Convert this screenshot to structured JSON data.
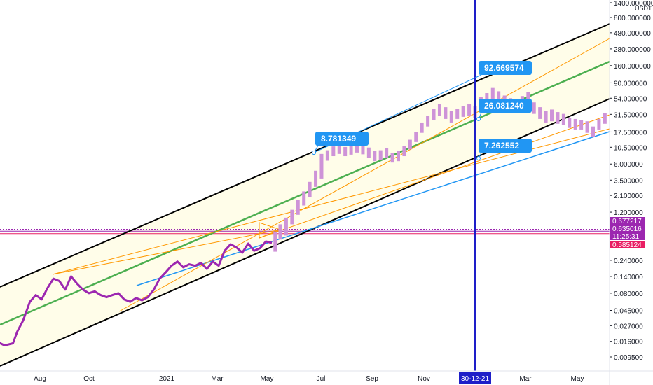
{
  "chart_data": {
    "type": "line",
    "title": "",
    "ylabel": "",
    "xlabel": "",
    "scale": "log",
    "y_unit": "USDT",
    "ylim": [
      0.0075,
      1400
    ],
    "y_tick_labels": [
      "1400.000000",
      "800.000000",
      "480.000000",
      "280.000000",
      "160.000000",
      "90.000000",
      "54.000000",
      "31.500000",
      "17.500000",
      "10.500000",
      "6.000000",
      "3.500000",
      "2.100000",
      "1.200000",
      "0.240000",
      "0.140000",
      "0.080000",
      "0.045000",
      "0.027000",
      "0.016000",
      "0.009500"
    ],
    "x_tick_labels": [
      "Aug",
      "Oct",
      "2021",
      "Mar",
      "May",
      "Jul",
      "Sep",
      "Nov",
      "Mar",
      "May"
    ],
    "crosshair_date_label": "30-12-21",
    "price_path": {
      "x": [
        "2020-06-01",
        "2020-06-10",
        "2020-06-20",
        "2020-06-30",
        "2020-07-05",
        "2020-07-12",
        "2020-07-20",
        "2020-07-27",
        "2020-08-03",
        "2020-08-10",
        "2020-08-17",
        "2020-08-24",
        "2020-08-31",
        "2020-09-07",
        "2020-09-14",
        "2020-09-21",
        "2020-09-28",
        "2020-10-05",
        "2020-10-12",
        "2020-10-19",
        "2020-10-26",
        "2020-11-02",
        "2020-11-09",
        "2020-11-16",
        "2020-11-23",
        "2020-11-30",
        "2020-12-07",
        "2020-12-14",
        "2020-12-21",
        "2020-12-28",
        "2021-01-04",
        "2021-01-11",
        "2021-01-18",
        "2021-01-25",
        "2021-02-01",
        "2021-02-08",
        "2021-02-15",
        "2021-02-22",
        "2021-03-01",
        "2021-03-08",
        "2021-03-15",
        "2021-03-22",
        "2021-03-29",
        "2021-04-05",
        "2021-04-12",
        "2021-04-19",
        "2021-04-26",
        "2021-05-03"
      ],
      "y": [
        0.0145,
        0.016,
        0.014,
        0.015,
        0.022,
        0.032,
        0.06,
        0.075,
        0.065,
        0.095,
        0.13,
        0.12,
        0.09,
        0.14,
        0.11,
        0.09,
        0.08,
        0.085,
        0.075,
        0.07,
        0.075,
        0.08,
        0.065,
        0.06,
        0.068,
        0.063,
        0.07,
        0.09,
        0.13,
        0.16,
        0.2,
        0.23,
        0.19,
        0.21,
        0.2,
        0.22,
        0.18,
        0.23,
        0.2,
        0.33,
        0.41,
        0.37,
        0.31,
        0.42,
        0.33,
        0.36,
        0.45,
        0.43
      ]
    },
    "bars": {
      "x": [
        "2021-05-07",
        "2021-05-13",
        "2021-05-20",
        "2021-05-27",
        "2021-06-03",
        "2021-06-10",
        "2021-06-17",
        "2021-06-24",
        "2021-07-01",
        "2021-07-08",
        "2021-07-15",
        "2021-07-22",
        "2021-07-29",
        "2021-08-05",
        "2021-08-12",
        "2021-08-19",
        "2021-08-26",
        "2021-09-02",
        "2021-09-09",
        "2021-09-16",
        "2021-09-23",
        "2021-09-30",
        "2021-10-07",
        "2021-10-14",
        "2021-10-21",
        "2021-10-28",
        "2021-11-04",
        "2021-11-11",
        "2021-11-18",
        "2021-11-25",
        "2021-12-02",
        "2021-12-09",
        "2021-12-16",
        "2021-12-23",
        "2021-12-30",
        "2022-01-06",
        "2022-01-13",
        "2022-01-20",
        "2022-01-27",
        "2022-02-03",
        "2022-02-10",
        "2022-02-17",
        "2022-02-24",
        "2022-03-03",
        "2022-03-10",
        "2022-03-17",
        "2022-03-24",
        "2022-03-31",
        "2022-04-07",
        "2022-04-14",
        "2022-04-21",
        "2022-04-28",
        "2022-05-05",
        "2022-05-12",
        "2022-05-19",
        "2022-05-26",
        "2022-06-02"
      ],
      "high": [
        0.62,
        0.8,
        1.0,
        1.3,
        1.8,
        2.4,
        3.3,
        4.8,
        8.4,
        9.5,
        10.8,
        11.5,
        10.6,
        11.3,
        11.7,
        11.1,
        10.4,
        9.3,
        9.5,
        10.2,
        8.7,
        9.3,
        11,
        13.5,
        17.5,
        24,
        30,
        38,
        44,
        40,
        35,
        38,
        42,
        44,
        41,
        56,
        64,
        76,
        68,
        59,
        54,
        50,
        58,
        66,
        47,
        40,
        35,
        37,
        34,
        32,
        28,
        27,
        26,
        25,
        21,
        27,
        33
      ],
      "low": [
        0.32,
        0.48,
        0.55,
        0.8,
        1.1,
        1.5,
        2.0,
        2.8,
        3.7,
        6.7,
        7.8,
        8.4,
        7.8,
        8.2,
        8.8,
        8.3,
        7.4,
        6.6,
        6.9,
        7.4,
        6.3,
        6.6,
        7.8,
        9.8,
        12.5,
        17,
        21,
        26,
        30,
        27,
        24,
        27,
        29,
        30,
        28,
        36,
        42,
        50,
        46,
        41,
        37,
        35,
        40,
        44,
        32,
        27,
        24,
        25,
        23,
        22,
        20,
        19,
        19,
        17,
        15,
        19,
        23
      ]
    },
    "callouts": [
      "92.669574",
      "26.081240",
      "8.781349",
      "7.262552"
    ],
    "price_tags": [
      "0.677217",
      "0.635016",
      "11:25:31",
      "0.585124"
    ],
    "colors": {
      "price_line": "#9c27b0",
      "bars": "#ce93d8",
      "mid_line": "#4caf50",
      "channel_lines": "#000000",
      "fan_lines": "#ff9800",
      "blue_line": "#2196f3",
      "crosshair": "#1e1ec8",
      "callout": "#2196f3",
      "hline_purple": "#9c27b0",
      "hline_pink": "#e91e63",
      "channel_fill": "#fffde7"
    }
  }
}
